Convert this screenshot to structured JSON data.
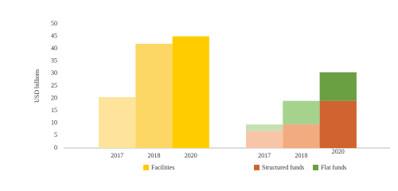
{
  "chart_data": [
    {
      "type": "bar",
      "ylabel": "USD billions",
      "categories": [
        "2017",
        "2018",
        "2020"
      ],
      "series": [
        {
          "name": "Facilities",
          "color": "#ffcc00",
          "colors": [
            "#fde49a",
            "#fdd766",
            "#ffcc00"
          ],
          "values": [
            20.5,
            42,
            45
          ]
        }
      ],
      "ylim": [
        0,
        50
      ],
      "yticks": [
        0,
        5,
        10,
        15,
        20,
        25,
        30,
        35,
        40,
        45,
        50
      ]
    },
    {
      "type": "stacked_bar",
      "categories": [
        "2017",
        "2018",
        "2020"
      ],
      "series": [
        {
          "name": "Structured funds",
          "color": "#d0632f",
          "colors": [
            "#f7c6a8",
            "#f2ab80",
            "#d0632f"
          ],
          "values": [
            7,
            9.5,
            19
          ]
        },
        {
          "name": "Flat funds",
          "color": "#6a9f42",
          "colors": [
            "#c4e0b4",
            "#a5d38d",
            "#6a9f42"
          ],
          "values": [
            2.5,
            9.5,
            11.5
          ]
        }
      ],
      "ylim": [
        0,
        50
      ]
    }
  ]
}
